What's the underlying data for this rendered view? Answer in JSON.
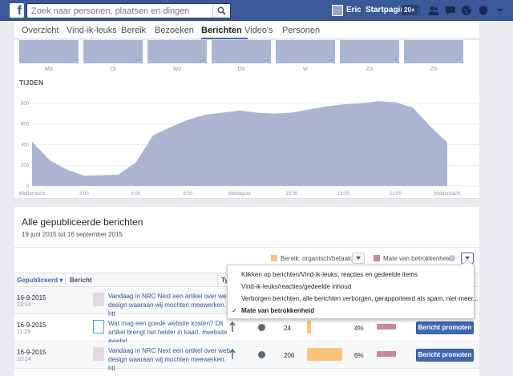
{
  "topbar": {
    "search_placeholder": "Zoek naar personen, plaatsen en dingen",
    "user_name": "Eric",
    "home_label": "Startpagina",
    "home_badge": "20+",
    "brand_color": "#3b5998"
  },
  "tabs": [
    {
      "label": "Overzicht"
    },
    {
      "label": "Vind-ik-leuks"
    },
    {
      "label": "Bereik"
    },
    {
      "label": "Bezoeken"
    },
    {
      "label": "Berichten",
      "active": true
    },
    {
      "label": "Video's"
    },
    {
      "label": "Personen"
    }
  ],
  "days": [
    "Ma",
    "Di",
    "Wo",
    "Do",
    "Vr",
    "Za",
    "Zo"
  ],
  "chart_data": {
    "type": "area",
    "title": "TIJDEN",
    "x_tick_labels": [
      "Middernacht",
      "3:00",
      "6:00",
      "9:00",
      "Middaguur",
      "15:00",
      "18:00",
      "21:00",
      "Middernacht"
    ],
    "y_ticks": [
      0,
      200,
      400,
      600,
      800
    ],
    "ylim": [
      0,
      900
    ],
    "x": [
      0,
      1,
      2,
      3,
      4,
      5,
      6,
      7,
      8,
      9,
      10,
      11,
      12,
      13,
      14,
      15,
      16,
      17,
      18,
      19,
      20,
      21,
      22,
      23,
      24
    ],
    "values": [
      430,
      250,
      160,
      100,
      105,
      110,
      230,
      490,
      570,
      640,
      690,
      710,
      730,
      710,
      700,
      710,
      740,
      770,
      790,
      800,
      820,
      810,
      760,
      580,
      420
    ],
    "fill_color": "#aab5d1",
    "grid": true
  },
  "posts_section": {
    "title": "Alle gepubliceerde berichten",
    "date_range": "19 juni 2015 tot 16 september 2015",
    "legend_reach": "Bereik: organisch/betaald",
    "legend_engagement": "Mate van betrokkenheid",
    "reach_color": "#fbc57a",
    "engagement_color": "#c9869d"
  },
  "table": {
    "headers": {
      "published": "Gepubliceerd",
      "post": "Bericht",
      "type": "Ty"
    },
    "promote_label": "Bericht promoten",
    "rows": [
      {
        "date": "16-9-2015",
        "time": "13:14",
        "text": "Vandaag in NRC Next een artikel over web design waaraan wij mochten meewerken. htt",
        "reach": "",
        "pct": ""
      },
      {
        "date": "16-9-2015",
        "time": "11:29",
        "text": "Wat mag een goede website kosten? Dit artikel brengt het helder in kaart. #website #webd",
        "reach": "24",
        "pct": "4%"
      },
      {
        "date": "16-9-2015",
        "time": "10:14",
        "text": "Vandaag in NRC Next een artikel over web design waaraan wij mochten meewerken. htt",
        "reach": "206",
        "pct": "6%"
      }
    ]
  },
  "dropdown": {
    "items": [
      {
        "label": "Klikken op berichten/Vind-ik-leuks, reacties en gedeelde items",
        "selected": false
      },
      {
        "label": "Vind-ik-leuks/reacties/gedeelde inhoud",
        "selected": false
      },
      {
        "label": "Verborgen berichten, alle berichten verborgen, gerapporteerd als spam, niet-meer...",
        "selected": false
      },
      {
        "label": "Mate van betrokkenheid",
        "selected": true
      }
    ],
    "check_glyph": "✓"
  }
}
